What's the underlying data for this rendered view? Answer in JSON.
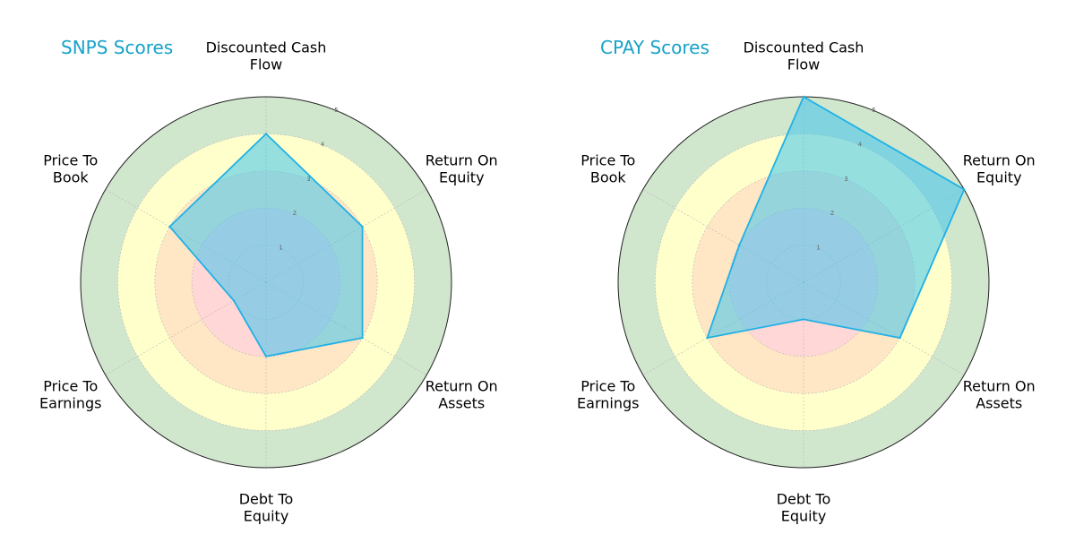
{
  "chart_data": [
    {
      "type": "radar",
      "title": "SNPS Scores",
      "axes": [
        [
          "Discounted Cash",
          "Flow"
        ],
        [
          "Return On",
          "Equity"
        ],
        [
          "Return On",
          "Assets"
        ],
        [
          "Debt To",
          "Equity"
        ],
        [
          "Price To",
          "Earnings"
        ],
        [
          "Price To",
          "Book"
        ]
      ],
      "values": [
        4,
        3,
        3,
        2,
        1,
        3
      ],
      "rlim": [
        0,
        5
      ],
      "rticks": [
        "1",
        "2",
        "3",
        "4",
        "5"
      ]
    },
    {
      "type": "radar",
      "title": "CPAY Scores",
      "axes": [
        [
          "Discounted Cash",
          "Flow"
        ],
        [
          "Return On",
          "Equity"
        ],
        [
          "Return On",
          "Assets"
        ],
        [
          "Debt To",
          "Equity"
        ],
        [
          "Price To",
          "Earnings"
        ],
        [
          "Price To",
          "Book"
        ]
      ],
      "values": [
        5,
        5,
        3,
        1,
        3,
        2
      ],
      "rlim": [
        0,
        5
      ],
      "rticks": [
        "1",
        "2",
        "3",
        "4",
        "5"
      ]
    }
  ],
  "colors": {
    "title": "#17a2c8",
    "series_fill": "#40c4ee",
    "series_line": "#1fb1e6",
    "band_red": "#ffd7d7",
    "band_orange": "#ffe6c4",
    "band_yellow": "#ffffcc",
    "band_green": "#d0e6cd",
    "outline": "#222222",
    "grid": "#b8b8b8"
  }
}
